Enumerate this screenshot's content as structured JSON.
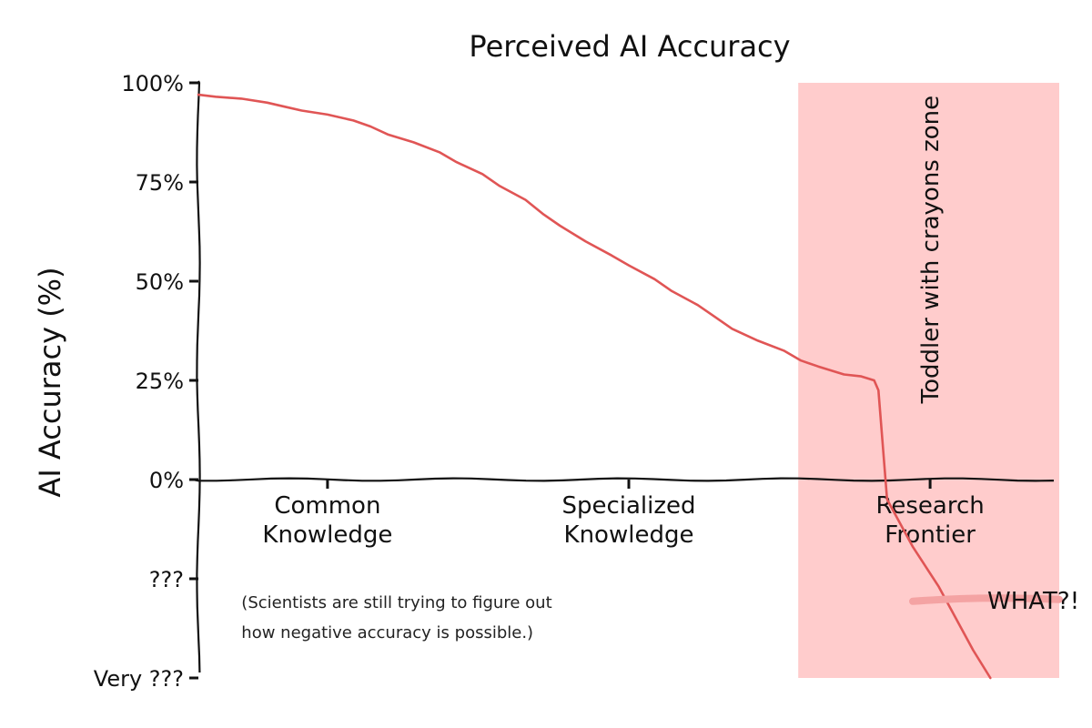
{
  "chart_data": {
    "type": "line",
    "title": "Perceived AI Accuracy",
    "xlabel": "",
    "ylabel": "AI Accuracy (%)",
    "ylim": [
      -50,
      100
    ],
    "xlim": [
      0,
      1
    ],
    "yticks": [
      {
        "value": 100,
        "label": "100%"
      },
      {
        "value": 75,
        "label": "75%"
      },
      {
        "value": 50,
        "label": "50%"
      },
      {
        "value": 25,
        "label": "25%"
      },
      {
        "value": 0,
        "label": "0%"
      },
      {
        "value": -25,
        "label": "???"
      },
      {
        "value": -50,
        "label": "Very ???"
      }
    ],
    "categories": [
      {
        "x": 0.15,
        "lines": [
          "Common",
          "Knowledge"
        ]
      },
      {
        "x": 0.5,
        "lines": [
          "Specialized",
          "Knowledge"
        ]
      },
      {
        "x": 0.85,
        "lines": [
          "Research",
          "Frontier"
        ]
      }
    ],
    "series": [
      {
        "color": "#e05555",
        "x": [
          0,
          0.02,
          0.05,
          0.08,
          0.1,
          0.12,
          0.15,
          0.18,
          0.2,
          0.22,
          0.25,
          0.28,
          0.3,
          0.33,
          0.35,
          0.38,
          0.4,
          0.42,
          0.45,
          0.48,
          0.5,
          0.53,
          0.55,
          0.58,
          0.6,
          0.62,
          0.65,
          0.68,
          0.7,
          0.72,
          0.75,
          0.77,
          0.785,
          0.79,
          0.8,
          0.83,
          0.86,
          0.88,
          0.9,
          0.92
        ],
        "y": [
          97,
          96.5,
          96,
          95,
          94,
          93,
          92,
          90.5,
          89,
          87,
          85,
          82.5,
          80,
          77,
          74,
          70.5,
          67,
          64,
          60,
          56.5,
          54,
          50.5,
          47.5,
          44,
          41,
          38,
          35,
          32.5,
          30,
          28.5,
          26.5,
          26,
          25,
          22.5,
          -5,
          -17,
          -27,
          -35,
          -43,
          -50
        ]
      }
    ],
    "shaded_region": {
      "x_start": 0.7,
      "x_end": 1.0,
      "color": "#ffcccc",
      "label": "Toddler with crayons zone"
    },
    "annotations": [
      {
        "text": "(Scientists are still trying to figure out",
        "x": 0.05,
        "y": -31
      },
      {
        "text": "how negative accuracy is possible.)",
        "x": 0.05,
        "y": -38.5
      },
      {
        "text": "WHAT?!",
        "x": 0.87,
        "y": -30
      }
    ],
    "grid": false,
    "legend": "none"
  }
}
